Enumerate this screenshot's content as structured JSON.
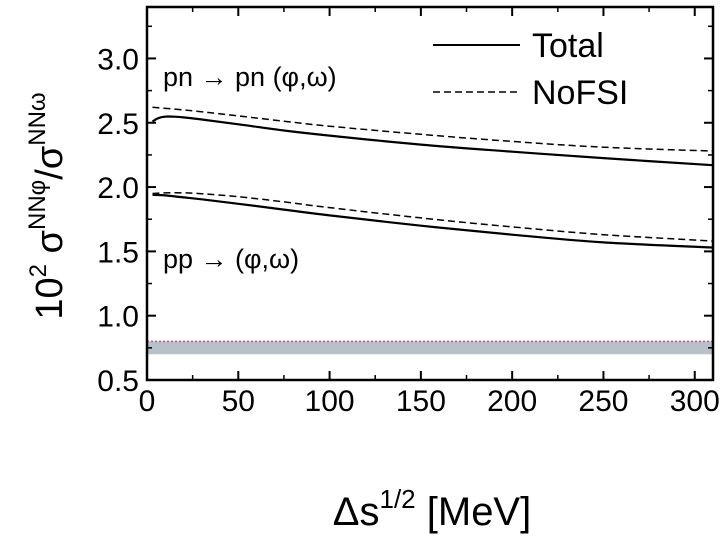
{
  "chart_data": {
    "type": "line",
    "xlim": [
      0,
      310
    ],
    "ylim": [
      0.5,
      3.4
    ],
    "x_ticks": [
      0,
      50,
      100,
      150,
      200,
      250,
      300
    ],
    "y_ticks": [
      0.5,
      1.0,
      1.5,
      2.0,
      2.5,
      3.0
    ],
    "x_tick_labels": [
      "0",
      "50",
      "100",
      "150",
      "200",
      "250",
      "300"
    ],
    "y_tick_labels": [
      "0.5",
      "1.0",
      "1.5",
      "2.0",
      "2.5",
      "3.0"
    ],
    "xlabel": {
      "base": "Δs",
      "sup": "1/2",
      "rest": " [MeV]"
    },
    "ylabel": {
      "p1": "10",
      "s1": "2",
      "p2": " σ",
      "s2": "NNφ",
      "p3": "/σ",
      "s3": "NNω"
    },
    "legend": {
      "position": "top-right",
      "entries": [
        {
          "label": "Total",
          "style": "solid"
        },
        {
          "label": "NoFSI",
          "style": "dashed"
        }
      ]
    },
    "annotations": [
      {
        "text": "pn → pn (φ,ω)"
      },
      {
        "text": "pp → (φ,ω)"
      }
    ],
    "series": [
      {
        "group": "pn",
        "style": "solid",
        "color": "#000000",
        "x": [
          3,
          6,
          10,
          15,
          20,
          30,
          50,
          75,
          100,
          150,
          200,
          250,
          310
        ],
        "y": [
          2.51,
          2.535,
          2.548,
          2.547,
          2.542,
          2.525,
          2.488,
          2.44,
          2.4,
          2.33,
          2.275,
          2.225,
          2.17
        ]
      },
      {
        "group": "pn",
        "style": "dashed",
        "color": "#000000",
        "x": [
          3,
          10,
          20,
          30,
          50,
          75,
          100,
          150,
          200,
          250,
          310
        ],
        "y": [
          2.62,
          2.612,
          2.6,
          2.585,
          2.553,
          2.512,
          2.473,
          2.41,
          2.355,
          2.31,
          2.28
        ]
      },
      {
        "group": "pp",
        "style": "solid",
        "color": "#000000",
        "x": [
          3,
          10,
          20,
          30,
          50,
          75,
          100,
          150,
          200,
          250,
          310
        ],
        "y": [
          1.94,
          1.935,
          1.92,
          1.905,
          1.87,
          1.825,
          1.78,
          1.7,
          1.63,
          1.57,
          1.53
        ]
      },
      {
        "group": "pp",
        "style": "dashed",
        "color": "#000000",
        "x": [
          3,
          10,
          20,
          30,
          50,
          75,
          100,
          150,
          200,
          250,
          310
        ],
        "y": [
          1.95,
          1.955,
          1.955,
          1.948,
          1.925,
          1.885,
          1.84,
          1.76,
          1.69,
          1.63,
          1.58
        ]
      }
    ],
    "band": {
      "y_low": 0.7,
      "y_high": 0.8,
      "color": "#b8c0c8",
      "edge_color": "#d04aa0"
    }
  }
}
